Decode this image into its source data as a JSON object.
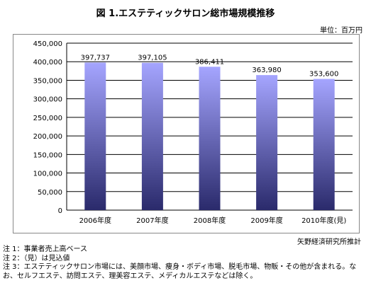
{
  "chart_data": {
    "type": "bar",
    "title": "図 1.エステティックサロン総市場規模推移",
    "unit_label": "単位：百万円",
    "categories": [
      "2006年度",
      "2007年度",
      "2008年度",
      "2009年度",
      "2010年度(見)"
    ],
    "values": [
      397737,
      397105,
      386411,
      363980,
      353600
    ],
    "value_labels": [
      "397,737",
      "397,105",
      "386,411",
      "363,980",
      "353,600"
    ],
    "ylim": [
      0,
      450000
    ],
    "yticks": [
      "0",
      "50,000",
      "100,000",
      "150,000",
      "200,000",
      "250,000",
      "300,000",
      "350,000",
      "400,000",
      "450,000"
    ],
    "grid": true,
    "legend": "none",
    "colors": {
      "bar_top": "#a5a5ff",
      "bar_bottom": "#2a2a6b",
      "grid": "#000000"
    }
  },
  "source": "矢野経済研究所推計",
  "notes": [
    "注 1：事業者売上高ベース",
    "注 2：（見）は見込値",
    "注 3：エステティックサロン市場には、美顔市場、痩身・ボディ市場、脱毛市場、物販・その他が含まれる。な",
    "お、セルフエステ、訪問エステ、理美容エステ、メディカルエステなどは除く。"
  ]
}
